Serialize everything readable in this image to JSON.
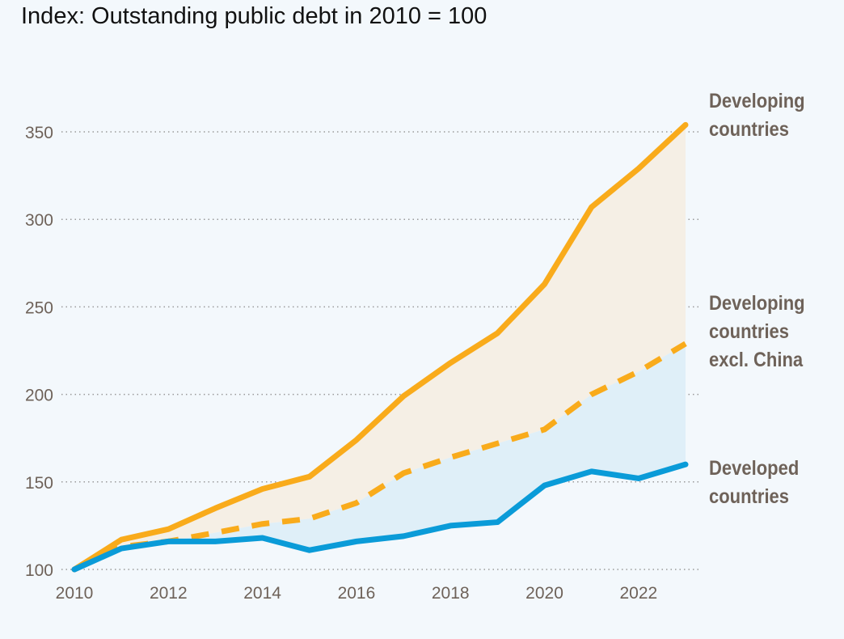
{
  "chart_data": {
    "type": "line",
    "title": "Index: Outstanding public debt in 2010 = 100",
    "xlabel": "",
    "ylabel": "",
    "x": [
      2010,
      2011,
      2012,
      2013,
      2014,
      2015,
      2016,
      2017,
      2018,
      2019,
      2020,
      2021,
      2022,
      2023
    ],
    "xticks": [
      2010,
      2012,
      2014,
      2016,
      2018,
      2020,
      2022
    ],
    "xtick_labels": [
      "2010",
      "2012",
      "2014",
      "2016",
      "2018",
      "2020",
      "2022"
    ],
    "yticks": [
      100,
      150,
      200,
      250,
      300,
      350
    ],
    "ytick_labels": [
      "100",
      "150",
      "200",
      "250",
      "300",
      "350"
    ],
    "xlim": [
      2010,
      2023
    ],
    "ylim": [
      100,
      350
    ],
    "grid": "horizontal dotted",
    "series": [
      {
        "name": "Developing countries",
        "label_lines": [
          "Developing",
          "countries"
        ],
        "color": "#f9ab1b",
        "style": "solid",
        "values": [
          100,
          117,
          123,
          135,
          146,
          153,
          174,
          199,
          218,
          235,
          263,
          307,
          329,
          354
        ]
      },
      {
        "name": "Developing countries excl. China",
        "label_lines": [
          "Developing",
          "countries",
          "excl. China"
        ],
        "color": "#f9ab1b",
        "style": "dashed",
        "values": [
          100,
          113,
          116,
          121,
          126,
          129,
          138,
          155,
          164,
          172,
          180,
          200,
          213,
          229
        ]
      },
      {
        "name": "Developed countries",
        "label_lines": [
          "Developed",
          "countries"
        ],
        "color": "#0a9bd8",
        "style": "solid",
        "values": [
          100,
          112,
          116,
          116,
          118,
          111,
          116,
          119,
          125,
          127,
          148,
          156,
          152,
          160
        ]
      }
    ],
    "fills": {
      "upper": "#f5efe5",
      "lower": "#dfeff8"
    }
  }
}
